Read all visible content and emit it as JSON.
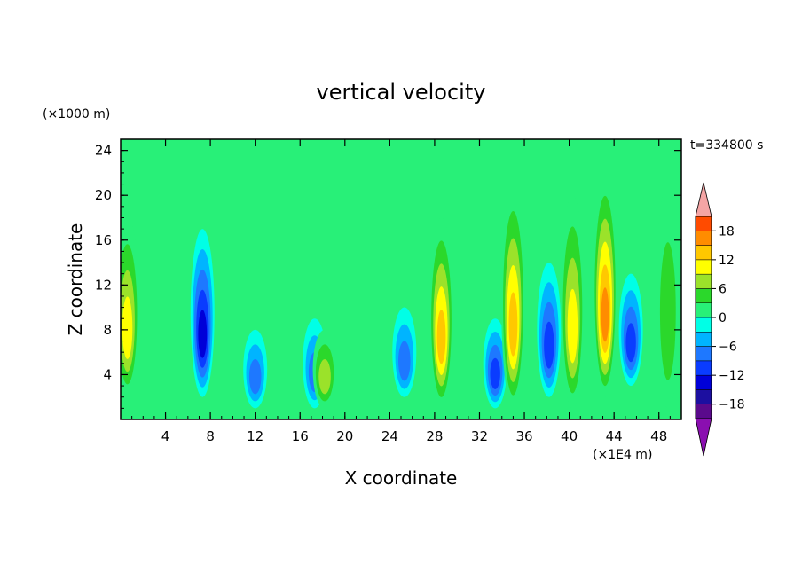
{
  "chart_data": {
    "type": "heatmap",
    "title": "vertical velocity",
    "xlabel": "X coordinate",
    "ylabel": "Z coordinate",
    "x_unit": "(×1E4 m)",
    "y_unit": "(×1000 m)",
    "time_label": "t=334800 s",
    "xlim": [
      0,
      50
    ],
    "ylim": [
      0,
      25
    ],
    "x_ticks": [
      4,
      8,
      12,
      16,
      20,
      24,
      28,
      32,
      36,
      40,
      44,
      48
    ],
    "y_ticks": [
      4,
      8,
      12,
      16,
      20,
      24
    ],
    "colorbar": {
      "tick_labels": [
        "18",
        "12",
        "6",
        "0",
        "−6",
        "−12",
        "−18"
      ],
      "tick_values": [
        18,
        12,
        6,
        0,
        -6,
        -12,
        -18
      ],
      "levels": [
        -21,
        -18,
        -15,
        -12,
        -9,
        -6,
        -3,
        0,
        3,
        6,
        9,
        12,
        15,
        18,
        21
      ],
      "colors": [
        "#5a0a8c",
        "#1c0fa0",
        "#0000d8",
        "#0a3cff",
        "#1e78ff",
        "#00b4ff",
        "#00ffe6",
        "#28f078",
        "#2bd82b",
        "#9be22a",
        "#ffff00",
        "#ffc800",
        "#ff8c00",
        "#ff4b00",
        "#ff0000"
      ],
      "extend_max_color": "#f4a5a5",
      "extend_min_color": "#8a0fb0"
    },
    "features": [
      {
        "x": 0.6,
        "z0": 2,
        "z1": 18,
        "w": 12
      },
      {
        "x": 7.3,
        "z0": 2,
        "z1": 17,
        "w": -17
      },
      {
        "x": 12.0,
        "z0": 1,
        "z1": 8,
        "w": -9
      },
      {
        "x": 17.3,
        "z0": 1,
        "z1": 9,
        "w": -10
      },
      {
        "x": 18.2,
        "z0": 1,
        "z1": 8,
        "w": 9
      },
      {
        "x": 25.3,
        "z0": 2,
        "z1": 10,
        "w": -10
      },
      {
        "x": 28.6,
        "z0": 1,
        "z1": 18,
        "w": 15
      },
      {
        "x": 33.4,
        "z0": 1,
        "z1": 9,
        "w": -12
      },
      {
        "x": 35.0,
        "z0": 1,
        "z1": 21,
        "w": 15
      },
      {
        "x": 38.2,
        "z0": 2,
        "z1": 14,
        "w": -14
      },
      {
        "x": 40.3,
        "z0": 1,
        "z1": 20,
        "w": 14
      },
      {
        "x": 43.2,
        "z0": 2,
        "z1": 22,
        "w": 18
      },
      {
        "x": 45.5,
        "z0": 3,
        "z1": 13,
        "w": -13
      },
      {
        "x": 48.8,
        "z0": 1,
        "z1": 21,
        "w": 8
      }
    ]
  }
}
